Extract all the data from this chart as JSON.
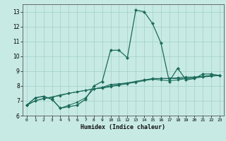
{
  "title": "",
  "xlabel": "Humidex (Indice chaleur)",
  "background_color": "#c8eae4",
  "grid_color": "#a0cfc8",
  "line_color": "#1a6b5a",
  "xlim": [
    -0.5,
    23.5
  ],
  "ylim": [
    6,
    13.5
  ],
  "xticks": [
    0,
    1,
    2,
    3,
    4,
    5,
    6,
    7,
    8,
    9,
    10,
    11,
    12,
    13,
    14,
    15,
    16,
    17,
    18,
    19,
    20,
    21,
    22,
    23
  ],
  "yticks": [
    6,
    7,
    8,
    9,
    10,
    11,
    12,
    13
  ],
  "series": [
    [
      6.7,
      7.2,
      7.3,
      7.1,
      6.5,
      6.6,
      6.7,
      7.1,
      8.0,
      8.3,
      10.4,
      10.4,
      9.9,
      13.1,
      13.0,
      12.2,
      10.9,
      8.3,
      9.2,
      8.4,
      8.5,
      8.8,
      8.8,
      8.7
    ],
    [
      6.7,
      7.2,
      7.3,
      7.1,
      6.5,
      6.7,
      6.9,
      7.2,
      7.8,
      7.9,
      8.1,
      8.15,
      8.2,
      8.3,
      8.4,
      8.45,
      8.4,
      8.35,
      8.4,
      8.5,
      8.55,
      8.6,
      8.7,
      8.7
    ],
    [
      6.7,
      7.0,
      7.15,
      7.25,
      7.35,
      7.5,
      7.6,
      7.7,
      7.8,
      7.85,
      7.95,
      8.05,
      8.15,
      8.25,
      8.35,
      8.45,
      8.5,
      8.5,
      8.5,
      8.5,
      8.55,
      8.6,
      8.65,
      8.7
    ],
    [
      6.7,
      7.0,
      7.15,
      7.25,
      7.4,
      7.5,
      7.6,
      7.7,
      7.8,
      7.9,
      8.0,
      8.1,
      8.2,
      8.3,
      8.4,
      8.5,
      8.5,
      8.5,
      8.55,
      8.6,
      8.6,
      8.65,
      8.7,
      8.7
    ]
  ]
}
